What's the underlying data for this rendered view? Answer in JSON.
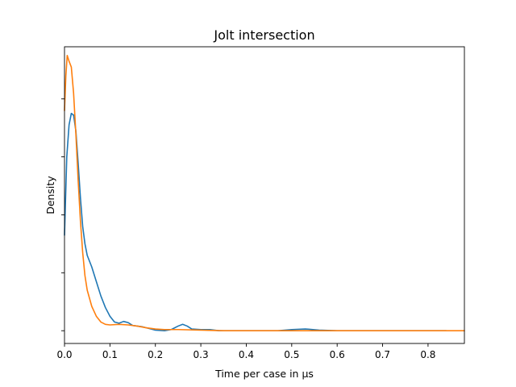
{
  "chart_data": {
    "type": "line",
    "title": "Jolt intersection",
    "xlabel": "Time per case in µs",
    "ylabel": "Density",
    "xlim": [
      0.0,
      0.88
    ],
    "ylim": [
      -0.22,
      4.9
    ],
    "x_ticks": [
      0.0,
      0.1,
      0.2,
      0.3,
      0.4,
      0.5,
      0.6,
      0.7,
      0.8
    ],
    "x_tick_labels": [
      "0.0",
      "0.1",
      "0.2",
      "0.3",
      "0.4",
      "0.5",
      "0.6",
      "0.7",
      "0.8"
    ],
    "y_ticks": [
      0,
      1,
      2,
      3,
      4
    ],
    "y_tick_labels": [
      "",
      "",
      "",
      "",
      ""
    ],
    "grid": false,
    "legend": "none",
    "series": [
      {
        "color": "#1f77b4",
        "points": [
          [
            0.0,
            1.65
          ],
          [
            0.005,
            3.0
          ],
          [
            0.01,
            3.55
          ],
          [
            0.015,
            3.75
          ],
          [
            0.02,
            3.72
          ],
          [
            0.025,
            3.45
          ],
          [
            0.03,
            2.9
          ],
          [
            0.035,
            2.3
          ],
          [
            0.04,
            1.8
          ],
          [
            0.045,
            1.5
          ],
          [
            0.05,
            1.3
          ],
          [
            0.06,
            1.1
          ],
          [
            0.07,
            0.85
          ],
          [
            0.08,
            0.6
          ],
          [
            0.09,
            0.4
          ],
          [
            0.1,
            0.25
          ],
          [
            0.11,
            0.15
          ],
          [
            0.12,
            0.13
          ],
          [
            0.13,
            0.16
          ],
          [
            0.14,
            0.14
          ],
          [
            0.15,
            0.09
          ],
          [
            0.17,
            0.07
          ],
          [
            0.19,
            0.03
          ],
          [
            0.2,
            0.01
          ],
          [
            0.22,
            0.0
          ],
          [
            0.235,
            0.02
          ],
          [
            0.25,
            0.08
          ],
          [
            0.26,
            0.11
          ],
          [
            0.27,
            0.08
          ],
          [
            0.28,
            0.03
          ],
          [
            0.3,
            0.02
          ],
          [
            0.32,
            0.02
          ],
          [
            0.34,
            0.0
          ],
          [
            0.4,
            0.0
          ],
          [
            0.47,
            0.0
          ],
          [
            0.5,
            0.02
          ],
          [
            0.53,
            0.03
          ],
          [
            0.56,
            0.01
          ],
          [
            0.6,
            0.0
          ],
          [
            0.7,
            0.0
          ],
          [
            0.8,
            0.0
          ],
          [
            0.84,
            0.0
          ]
        ]
      },
      {
        "color": "#ff7f0e",
        "points": [
          [
            0.0,
            3.8
          ],
          [
            0.003,
            4.4
          ],
          [
            0.006,
            4.75
          ],
          [
            0.01,
            4.65
          ],
          [
            0.015,
            4.55
          ],
          [
            0.02,
            4.1
          ],
          [
            0.025,
            3.4
          ],
          [
            0.03,
            2.6
          ],
          [
            0.035,
            1.9
          ],
          [
            0.04,
            1.35
          ],
          [
            0.045,
            0.95
          ],
          [
            0.05,
            0.7
          ],
          [
            0.06,
            0.42
          ],
          [
            0.07,
            0.25
          ],
          [
            0.08,
            0.15
          ],
          [
            0.09,
            0.11
          ],
          [
            0.1,
            0.1
          ],
          [
            0.12,
            0.11
          ],
          [
            0.14,
            0.1
          ],
          [
            0.16,
            0.08
          ],
          [
            0.18,
            0.05
          ],
          [
            0.2,
            0.03
          ],
          [
            0.22,
            0.02
          ],
          [
            0.25,
            0.02
          ],
          [
            0.3,
            0.01
          ],
          [
            0.35,
            0.0
          ],
          [
            0.5,
            0.0
          ],
          [
            0.6,
            0.0
          ],
          [
            0.7,
            0.0
          ],
          [
            0.8,
            0.0
          ],
          [
            0.84,
            0.0
          ],
          [
            0.88,
            0.0
          ]
        ]
      }
    ]
  }
}
